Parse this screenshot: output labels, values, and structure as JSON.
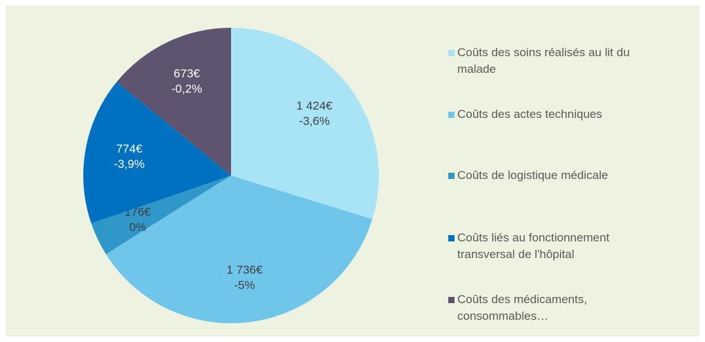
{
  "chart_data": {
    "type": "pie",
    "categories": [
      "Coûts des soins réalisés au lit du malade",
      "Coûts des actes techniques",
      "Coûts de logistique médicale",
      "Coûts liés au fonctionnement transversal de l'hôpital",
      "Coûts des médicaments, consommables…"
    ],
    "values": [
      1424,
      1736,
      176,
      774,
      673
    ],
    "value_labels": [
      "1 424€",
      "1 736€",
      "176€",
      "774€",
      "673€"
    ],
    "changes": [
      -3.6,
      -5,
      0,
      -3.9,
      -0.2
    ],
    "change_labels": [
      "-3,6%",
      "-5%",
      "0%",
      "-3,9%",
      "-0,2%"
    ],
    "colors": [
      "#a9e3f6",
      "#6fc6ea",
      "#2f98c9",
      "#0070c0",
      "#5f546f"
    ],
    "label_colors": [
      "#404040",
      "#404040",
      "#404040",
      "#ffffff",
      "#ffffff"
    ],
    "legend": "right"
  }
}
